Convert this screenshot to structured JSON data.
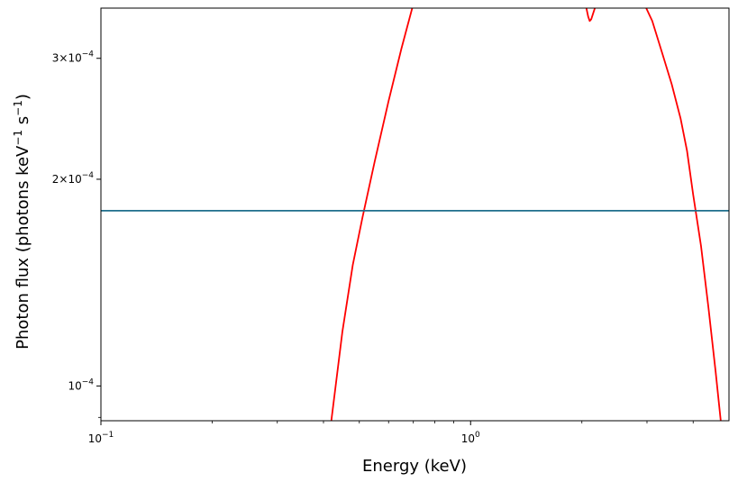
{
  "chart_data": {
    "type": "line",
    "title": "",
    "xlabel": "Energy (keV)",
    "ylabel": {
      "text": "Photon flux (photons keV",
      "sup1": "−1",
      "mid": " s",
      "sup2": "−1",
      "end": ")"
    },
    "xscale": "log",
    "yscale": "log",
    "xlim": [
      0.1,
      5.0
    ],
    "ylim": [
      8.9e-05,
      0.000355
    ],
    "grid": false,
    "legend": "none",
    "x_ticks": [
      {
        "value": 0.1,
        "base": "10",
        "exp": "−1"
      },
      {
        "value": 1.0,
        "base": "10",
        "exp": "0"
      }
    ],
    "y_ticks": [
      {
        "value": 0.0001,
        "mant": "",
        "base": "10",
        "exp": "−4"
      },
      {
        "value": 0.0002,
        "mant": "2×",
        "base": "10",
        "exp": "−4"
      },
      {
        "value": 0.0003,
        "mant": "3×",
        "base": "10",
        "exp": "−4"
      }
    ],
    "x_minor": [
      0.2,
      0.3,
      0.4,
      0.5,
      0.6,
      0.7,
      0.8,
      0.9,
      2,
      3,
      4
    ],
    "y_minor": [
      9e-05
    ],
    "series": [
      {
        "color": "#ff0000",
        "x": [
          0.42,
          0.45,
          0.48,
          0.51,
          0.55,
          0.6,
          0.65,
          0.7
        ],
        "y": [
          8.9e-05,
          0.00012,
          0.00015,
          0.000176,
          0.000212,
          0.00026,
          0.00031,
          0.00036
        ]
      },
      {
        "color": "#ff0000",
        "x": [
          2.05,
          2.08,
          2.1,
          2.12,
          2.15,
          2.18
        ],
        "y": [
          0.000358,
          0.000345,
          0.00034,
          0.000342,
          0.00035,
          0.000358
        ]
      },
      {
        "color": "#ff0000",
        "x": [
          2.95,
          3.1,
          3.3,
          3.5,
          3.7,
          3.85,
          4.0,
          4.2,
          4.4,
          4.6,
          4.75
        ],
        "y": [
          0.00036,
          0.00034,
          0.000305,
          0.000275,
          0.000245,
          0.00022,
          0.00019,
          0.00016,
          0.00013,
          0.000105,
          8.9e-05
        ]
      },
      {
        "color": "#1f6e8c",
        "x": [
          0.1,
          5.0
        ],
        "y": [
          0.00018,
          0.00018
        ]
      }
    ]
  }
}
